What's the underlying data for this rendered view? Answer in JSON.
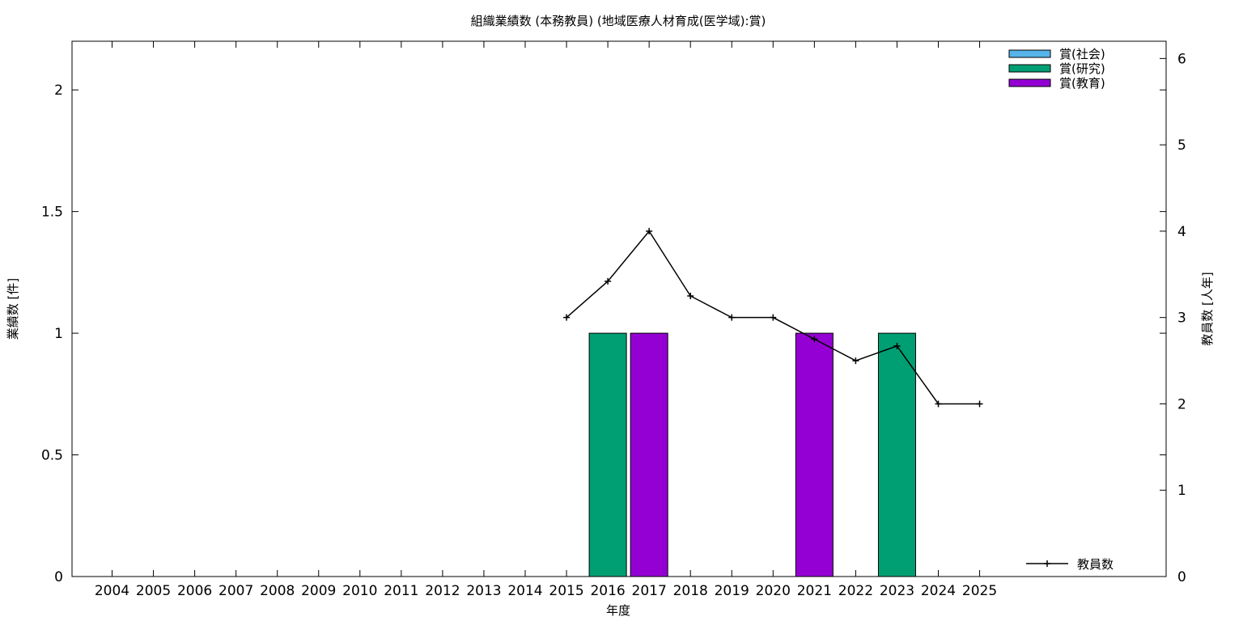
{
  "chart_data": {
    "type": "bar",
    "title": "組織業績数 (本務教員) (地域医療人材育成(医学域):賞)",
    "xlabel": "年度",
    "ylabel": "業績数 [件]",
    "y2label": "教員数 [人年]",
    "categories": [
      "2004",
      "2005",
      "2006",
      "2007",
      "2008",
      "2009",
      "2010",
      "2011",
      "2012",
      "2013",
      "2014",
      "2015",
      "2016",
      "2017",
      "2018",
      "2019",
      "2020",
      "2021",
      "2022",
      "2023",
      "2024",
      "2025"
    ],
    "ylim": [
      0,
      2.2
    ],
    "yticks": [
      0,
      0.5,
      1,
      1.5,
      2
    ],
    "ytick_labels": [
      "0",
      "0.5",
      "1",
      "1.5",
      "2"
    ],
    "y2lim": [
      0,
      6.2
    ],
    "y2ticks": [
      0,
      1,
      2,
      3,
      4,
      5,
      6
    ],
    "y2tick_labels": [
      "0",
      "1",
      "2",
      "3",
      "4",
      "5",
      "6"
    ],
    "legend_position": "top-right",
    "series": [
      {
        "name": "賞(社会)",
        "color": "#56b4e9",
        "values": [
          0,
          0,
          0,
          0,
          0,
          0,
          0,
          0,
          0,
          0,
          0,
          0,
          0,
          0,
          0,
          0,
          0,
          0,
          0,
          0,
          0,
          0
        ]
      },
      {
        "name": "賞(研究)",
        "color": "#009e73",
        "values": [
          0,
          0,
          0,
          0,
          0,
          0,
          0,
          0,
          0,
          0,
          0,
          0,
          1,
          0,
          0,
          0,
          0,
          0,
          0,
          1,
          0,
          0
        ]
      },
      {
        "name": "賞(教育)",
        "color": "#9400d3",
        "values": [
          0,
          0,
          0,
          0,
          0,
          0,
          0,
          0,
          0,
          0,
          0,
          0,
          0,
          1,
          0,
          0,
          0,
          1,
          0,
          0,
          0,
          0
        ]
      }
    ],
    "line_series": {
      "name": "教員数",
      "color": "#000000",
      "axis": "right",
      "x": [
        "2015",
        "2016",
        "2017",
        "2018",
        "2019",
        "2020",
        "2021",
        "2022",
        "2023",
        "2024",
        "2025"
      ],
      "values": [
        3.0,
        3.42,
        4.0,
        3.25,
        3.0,
        3.0,
        2.75,
        2.5,
        2.67,
        2.0,
        2.0
      ]
    }
  }
}
